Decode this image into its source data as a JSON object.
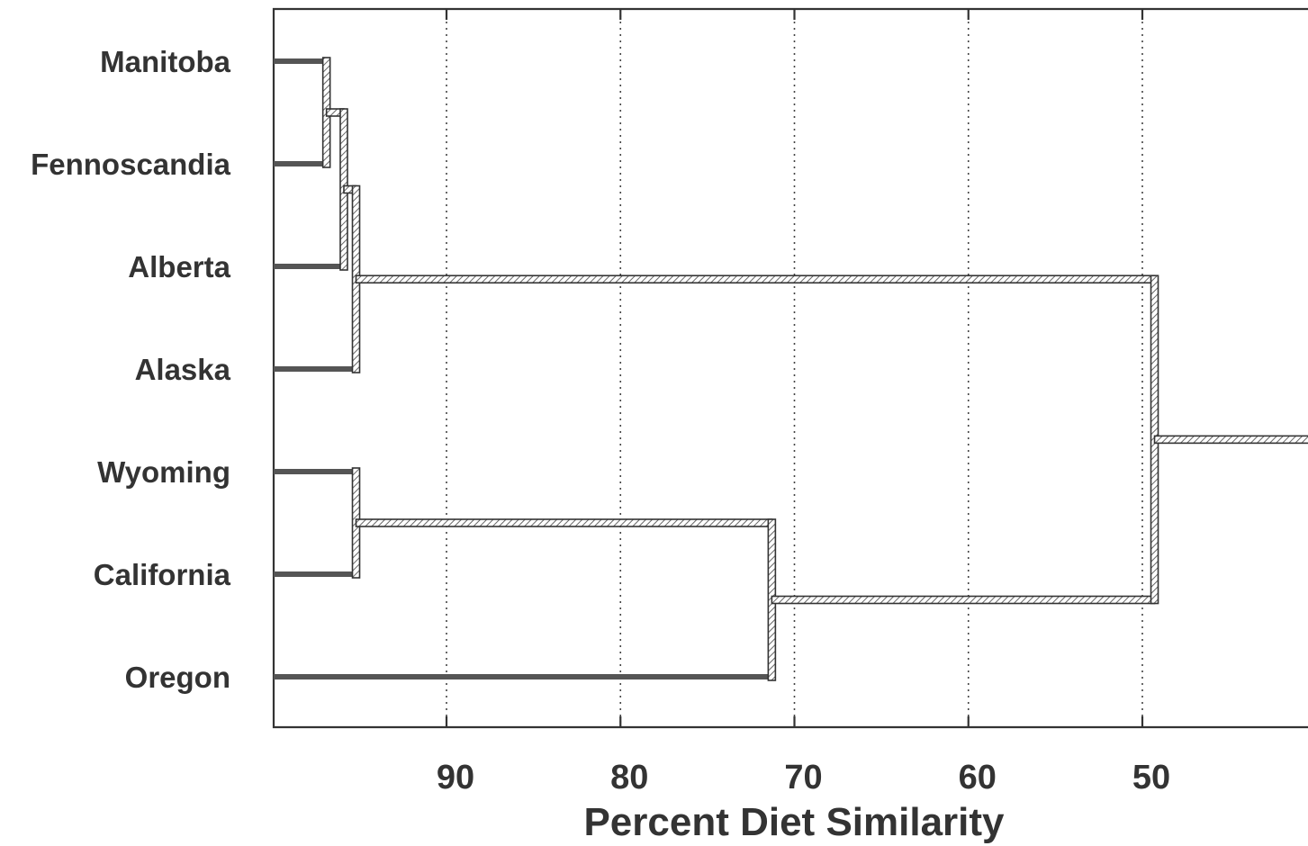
{
  "chart_data": {
    "type": "dendrogram",
    "xlabel": "Percent Diet Similarity",
    "xlim": [
      100,
      41
    ],
    "xticks": [
      90,
      80,
      70,
      60,
      50
    ],
    "leaves": [
      "Manitoba",
      "Fennoscandia",
      "Alberta",
      "Alaska",
      "Wyoming",
      "California",
      "Oregon"
    ],
    "merges": [
      {
        "members": [
          "Manitoba",
          "Fennoscandia"
        ],
        "similarity": 96.9
      },
      {
        "members": [
          "Manitoba + Fennoscandia",
          "Alberta"
        ],
        "similarity": 95.9
      },
      {
        "members": [
          "Manitoba + Fennoscandia + Alberta",
          "Alaska"
        ],
        "similarity": 95.2
      },
      {
        "members": [
          "Wyoming",
          "California"
        ],
        "similarity": 95.2
      },
      {
        "members": [
          "Wyoming + California",
          "Oregon"
        ],
        "similarity": 71.3
      },
      {
        "members": [
          "Manitoba + Fennoscandia + Alberta + Alaska",
          "Wyoming + California + Oregon"
        ],
        "similarity": 49.3
      }
    ],
    "grid": "x dotted"
  },
  "colors": {
    "ink": "#333333",
    "leaf_line": "#555555",
    "hatch": "#666666"
  }
}
